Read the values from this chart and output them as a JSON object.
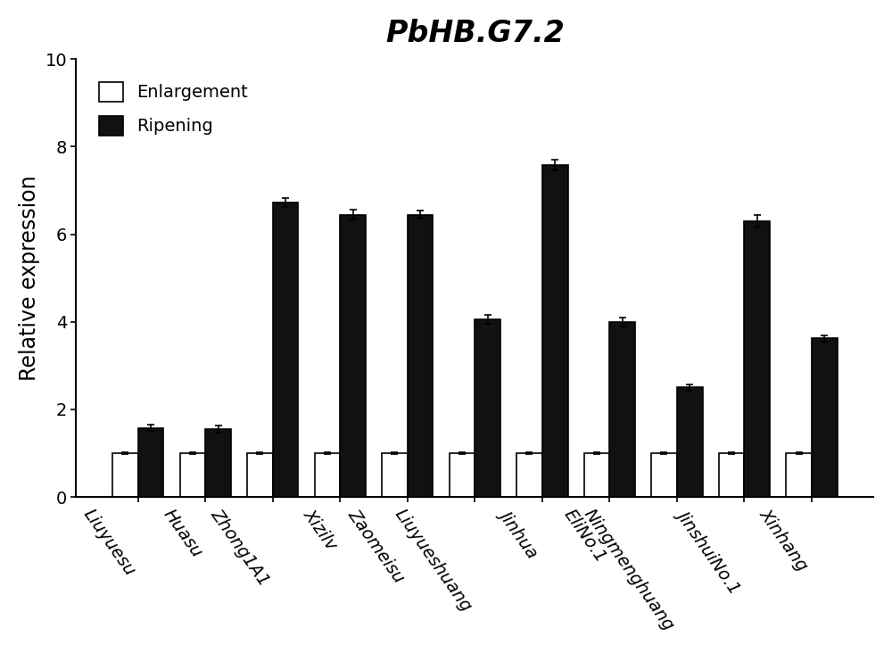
{
  "title": "PbHB.G7.2",
  "ylabel": "Relative expression",
  "categories": [
    "Liuyuesu",
    "Huasu",
    "Zhong1A1",
    "Xizilv",
    "Zaomeisu",
    "Liuyueshuang",
    "Jinhua",
    "EliNo.1",
    "Ningmenghuang",
    "JinshuiNo.1",
    "Xinhang"
  ],
  "enlargement_values": [
    1.0,
    1.0,
    1.0,
    1.0,
    1.0,
    1.0,
    1.0,
    1.0,
    1.0,
    1.0,
    1.0
  ],
  "ripening_values": [
    1.58,
    1.55,
    6.72,
    6.45,
    6.45,
    4.05,
    7.58,
    4.0,
    2.5,
    6.3,
    3.62
  ],
  "enlargement_errors": [
    0.02,
    0.02,
    0.02,
    0.02,
    0.02,
    0.02,
    0.02,
    0.02,
    0.02,
    0.02,
    0.02
  ],
  "ripening_errors": [
    0.07,
    0.09,
    0.1,
    0.12,
    0.1,
    0.1,
    0.13,
    0.1,
    0.08,
    0.15,
    0.08
  ],
  "ylim": [
    0,
    10
  ],
  "yticks": [
    0,
    2,
    4,
    6,
    8,
    10
  ],
  "bar_width": 0.38,
  "enlargement_color": "#ffffff",
  "ripening_color": "#111111",
  "edge_color": "#000000",
  "background_color": "#ffffff",
  "legend_enlargement_label": "Enlargement",
  "legend_ripening_label": "Ripening",
  "title_fontsize": 24,
  "axis_label_fontsize": 17,
  "tick_fontsize": 14,
  "legend_fontsize": 14,
  "xlabel_rotation": -55
}
